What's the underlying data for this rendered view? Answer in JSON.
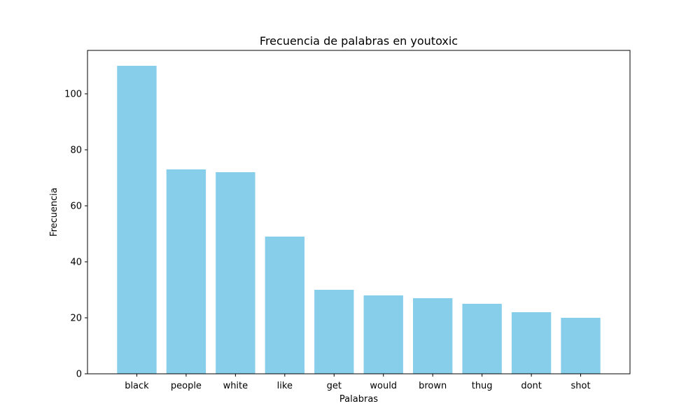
{
  "chart_data": {
    "type": "bar",
    "title": "Frecuencia de palabras en youtoxic",
    "xlabel": "Palabras",
    "ylabel": "Frecuencia",
    "categories": [
      "black",
      "people",
      "white",
      "like",
      "get",
      "would",
      "brown",
      "thug",
      "dont",
      "shot"
    ],
    "values": [
      110,
      73,
      72,
      49,
      30,
      28,
      27,
      25,
      22,
      20
    ],
    "ylim": [
      0,
      115.5
    ],
    "yticks": [
      0,
      20,
      40,
      60,
      80,
      100
    ],
    "grid": false,
    "legend": "none",
    "bar_color": "#87ceeb"
  }
}
